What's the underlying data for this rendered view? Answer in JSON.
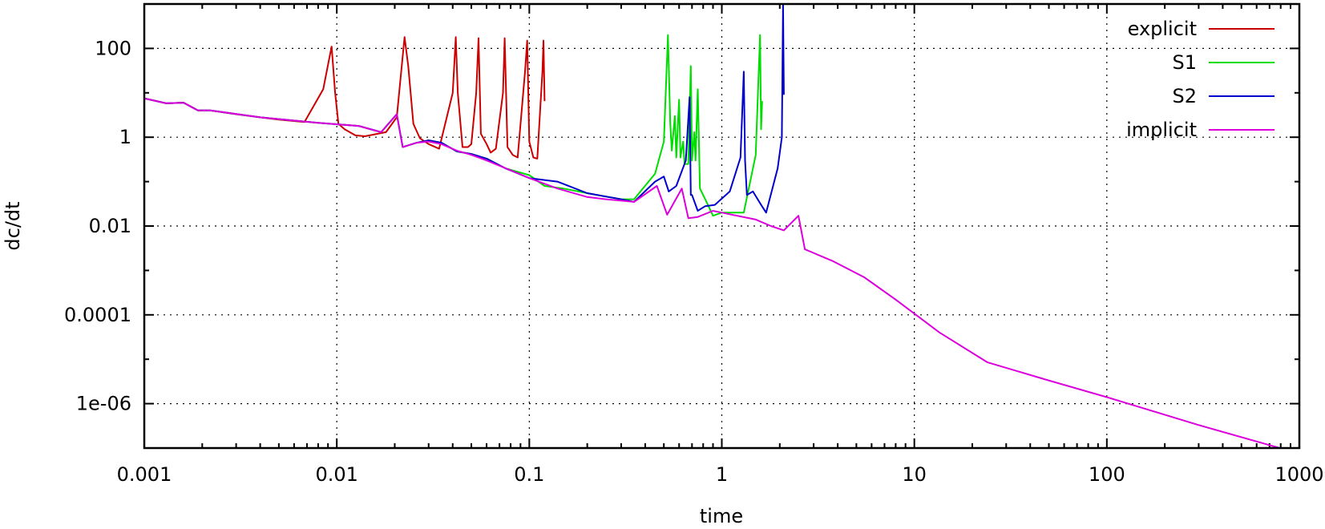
{
  "chart_data": {
    "type": "line",
    "title": "",
    "xlabel": "time",
    "ylabel": "dc/dt",
    "xscale": "log",
    "yscale": "log",
    "xlim": [
      0.001,
      1000
    ],
    "ylim": [
      1e-07,
      1000
    ],
    "grid": true,
    "legend_position": "top-right",
    "x_ticks": [
      {
        "value": 0.001,
        "label": "0.001"
      },
      {
        "value": 0.01,
        "label": "0.01"
      },
      {
        "value": 0.1,
        "label": "0.1"
      },
      {
        "value": 1,
        "label": "1"
      },
      {
        "value": 10,
        "label": "10"
      },
      {
        "value": 100,
        "label": "100"
      },
      {
        "value": 1000,
        "label": "1000"
      }
    ],
    "y_ticks": [
      {
        "value": 100,
        "label": "100"
      },
      {
        "value": 1,
        "label": "1"
      },
      {
        "value": 0.01,
        "label": "0.01"
      },
      {
        "value": 0.0001,
        "label": "0.0001"
      },
      {
        "value": 1e-06,
        "label": "1e-06"
      }
    ],
    "series": [
      {
        "name": "explicit",
        "color": "#cc0000",
        "points": [
          [
            0.001,
            7.5
          ],
          [
            0.0013,
            5.8
          ],
          [
            0.0016,
            6.0
          ],
          [
            0.0019,
            4.0
          ],
          [
            0.0022,
            4.0
          ],
          [
            0.003,
            3.3
          ],
          [
            0.004,
            2.8
          ],
          [
            0.005,
            2.5
          ],
          [
            0.0068,
            2.2
          ],
          [
            0.0085,
            12
          ],
          [
            0.0094,
            110
          ],
          [
            0.0098,
            10
          ],
          [
            0.0102,
            2.0
          ],
          [
            0.011,
            1.5
          ],
          [
            0.0125,
            1.1
          ],
          [
            0.014,
            1.05
          ],
          [
            0.018,
            1.3
          ],
          [
            0.0205,
            2.8
          ],
          [
            0.0225,
            180
          ],
          [
            0.0235,
            40
          ],
          [
            0.025,
            2.0
          ],
          [
            0.027,
            0.95
          ],
          [
            0.03,
            0.7
          ],
          [
            0.034,
            0.55
          ],
          [
            0.04,
            10
          ],
          [
            0.0415,
            180
          ],
          [
            0.0425,
            10
          ],
          [
            0.045,
            0.6
          ],
          [
            0.048,
            0.6
          ],
          [
            0.05,
            0.7
          ],
          [
            0.053,
            10
          ],
          [
            0.0545,
            170
          ],
          [
            0.056,
            1.2
          ],
          [
            0.06,
            0.7
          ],
          [
            0.063,
            0.45
          ],
          [
            0.067,
            0.55
          ],
          [
            0.073,
            10
          ],
          [
            0.0745,
            170
          ],
          [
            0.077,
            0.6
          ],
          [
            0.082,
            0.4
          ],
          [
            0.087,
            0.35
          ],
          [
            0.095,
            30
          ],
          [
            0.0975,
            150
          ],
          [
            0.1,
            0.8
          ],
          [
            0.105,
            0.35
          ],
          [
            0.11,
            0.33
          ],
          [
            0.117,
            30
          ],
          [
            0.1185,
            150
          ],
          [
            0.12,
            6.5
          ]
        ]
      },
      {
        "name": "S1",
        "color": "#00dd00",
        "points": [
          [
            0.001,
            7.5
          ],
          [
            0.0013,
            5.8
          ],
          [
            0.0016,
            6.0
          ],
          [
            0.0019,
            4.0
          ],
          [
            0.0022,
            4.0
          ],
          [
            0.004,
            2.8
          ],
          [
            0.008,
            2.1
          ],
          [
            0.013,
            1.8
          ],
          [
            0.017,
            1.3
          ],
          [
            0.0205,
            3.3
          ],
          [
            0.022,
            0.6
          ],
          [
            0.026,
            0.75
          ],
          [
            0.03,
            0.85
          ],
          [
            0.035,
            0.75
          ],
          [
            0.042,
            0.48
          ],
          [
            0.05,
            0.42
          ],
          [
            0.06,
            0.33
          ],
          [
            0.075,
            0.2
          ],
          [
            0.1,
            0.14
          ],
          [
            0.12,
            0.08
          ],
          [
            0.15,
            0.07
          ],
          [
            0.2,
            0.055
          ],
          [
            0.3,
            0.04
          ],
          [
            0.35,
            0.04
          ],
          [
            0.45,
            0.15
          ],
          [
            0.5,
            0.8
          ],
          [
            0.525,
            200
          ],
          [
            0.54,
            2.0
          ],
          [
            0.55,
            0.5
          ],
          [
            0.57,
            3.0
          ],
          [
            0.58,
            0.35
          ],
          [
            0.6,
            7.0
          ],
          [
            0.61,
            0.35
          ],
          [
            0.63,
            0.8
          ],
          [
            0.64,
            0.25
          ],
          [
            0.67,
            0.25
          ],
          [
            0.69,
            40
          ],
          [
            0.7,
            0.3
          ],
          [
            0.72,
            1.3
          ],
          [
            0.73,
            0.3
          ],
          [
            0.75,
            12
          ],
          [
            0.77,
            0.07
          ],
          [
            0.82,
            0.04
          ],
          [
            0.9,
            0.017
          ],
          [
            1.0,
            0.02
          ],
          [
            1.2,
            0.02
          ],
          [
            1.3,
            0.02
          ],
          [
            1.5,
            0.4
          ],
          [
            1.58,
            200
          ],
          [
            1.6,
            1.5
          ],
          [
            1.62,
            6.5
          ]
        ]
      },
      {
        "name": "S2",
        "color": "#0000cc",
        "points": [
          [
            0.001,
            7.5
          ],
          [
            0.0013,
            5.8
          ],
          [
            0.0016,
            6.0
          ],
          [
            0.0019,
            4.0
          ],
          [
            0.0022,
            4.0
          ],
          [
            0.004,
            2.8
          ],
          [
            0.008,
            2.1
          ],
          [
            0.013,
            1.8
          ],
          [
            0.017,
            1.3
          ],
          [
            0.0205,
            3.3
          ],
          [
            0.022,
            0.6
          ],
          [
            0.026,
            0.75
          ],
          [
            0.03,
            0.85
          ],
          [
            0.035,
            0.75
          ],
          [
            0.042,
            0.48
          ],
          [
            0.05,
            0.42
          ],
          [
            0.06,
            0.33
          ],
          [
            0.075,
            0.2
          ],
          [
            0.1,
            0.12
          ],
          [
            0.14,
            0.1
          ],
          [
            0.2,
            0.055
          ],
          [
            0.3,
            0.04
          ],
          [
            0.35,
            0.035
          ],
          [
            0.45,
            0.1
          ],
          [
            0.5,
            0.13
          ],
          [
            0.53,
            0.06
          ],
          [
            0.58,
            0.08
          ],
          [
            0.65,
            0.3
          ],
          [
            0.68,
            8.0
          ],
          [
            0.69,
            0.05
          ],
          [
            0.7,
            0.05
          ],
          [
            0.75,
            0.022
          ],
          [
            0.82,
            0.028
          ],
          [
            0.92,
            0.03
          ],
          [
            1.1,
            0.06
          ],
          [
            1.25,
            0.35
          ],
          [
            1.3,
            30
          ],
          [
            1.32,
            0.3
          ],
          [
            1.35,
            0.05
          ],
          [
            1.45,
            0.06
          ],
          [
            1.6,
            0.03
          ],
          [
            1.7,
            0.02
          ],
          [
            1.95,
            0.2
          ],
          [
            2.05,
            1.0
          ],
          [
            2.08,
            1000
          ],
          [
            2.1,
            9.0
          ]
        ]
      },
      {
        "name": "implicit",
        "color": "#dd00dd",
        "points": [
          [
            0.001,
            7.5
          ],
          [
            0.0013,
            5.8
          ],
          [
            0.0016,
            6.0
          ],
          [
            0.0019,
            4.0
          ],
          [
            0.0022,
            4.0
          ],
          [
            0.004,
            2.8
          ],
          [
            0.008,
            2.1
          ],
          [
            0.013,
            1.8
          ],
          [
            0.017,
            1.3
          ],
          [
            0.0205,
            3.3
          ],
          [
            0.022,
            0.6
          ],
          [
            0.026,
            0.75
          ],
          [
            0.03,
            0.8
          ],
          [
            0.035,
            0.7
          ],
          [
            0.042,
            0.5
          ],
          [
            0.05,
            0.4
          ],
          [
            0.06,
            0.3
          ],
          [
            0.08,
            0.18
          ],
          [
            0.1,
            0.12
          ],
          [
            0.14,
            0.07
          ],
          [
            0.2,
            0.045
          ],
          [
            0.25,
            0.04
          ],
          [
            0.35,
            0.035
          ],
          [
            0.46,
            0.08
          ],
          [
            0.52,
            0.018
          ],
          [
            0.62,
            0.07
          ],
          [
            0.67,
            0.015
          ],
          [
            0.75,
            0.016
          ],
          [
            0.9,
            0.022
          ],
          [
            1.0,
            0.02
          ],
          [
            1.5,
            0.014
          ],
          [
            1.8,
            0.01
          ],
          [
            2.1,
            0.008
          ],
          [
            2.5,
            0.017
          ],
          [
            2.7,
            0.003
          ],
          [
            3.8,
            0.0016
          ],
          [
            5.5,
            0.0007
          ],
          [
            8,
            0.00022
          ],
          [
            13.5,
            4e-05
          ],
          [
            24,
            8.5e-06
          ],
          [
            48,
            3.5e-06
          ],
          [
            100,
            1.4e-06
          ],
          [
            300,
            3.3e-07
          ],
          [
            1000,
            7.5e-08
          ]
        ]
      }
    ]
  }
}
